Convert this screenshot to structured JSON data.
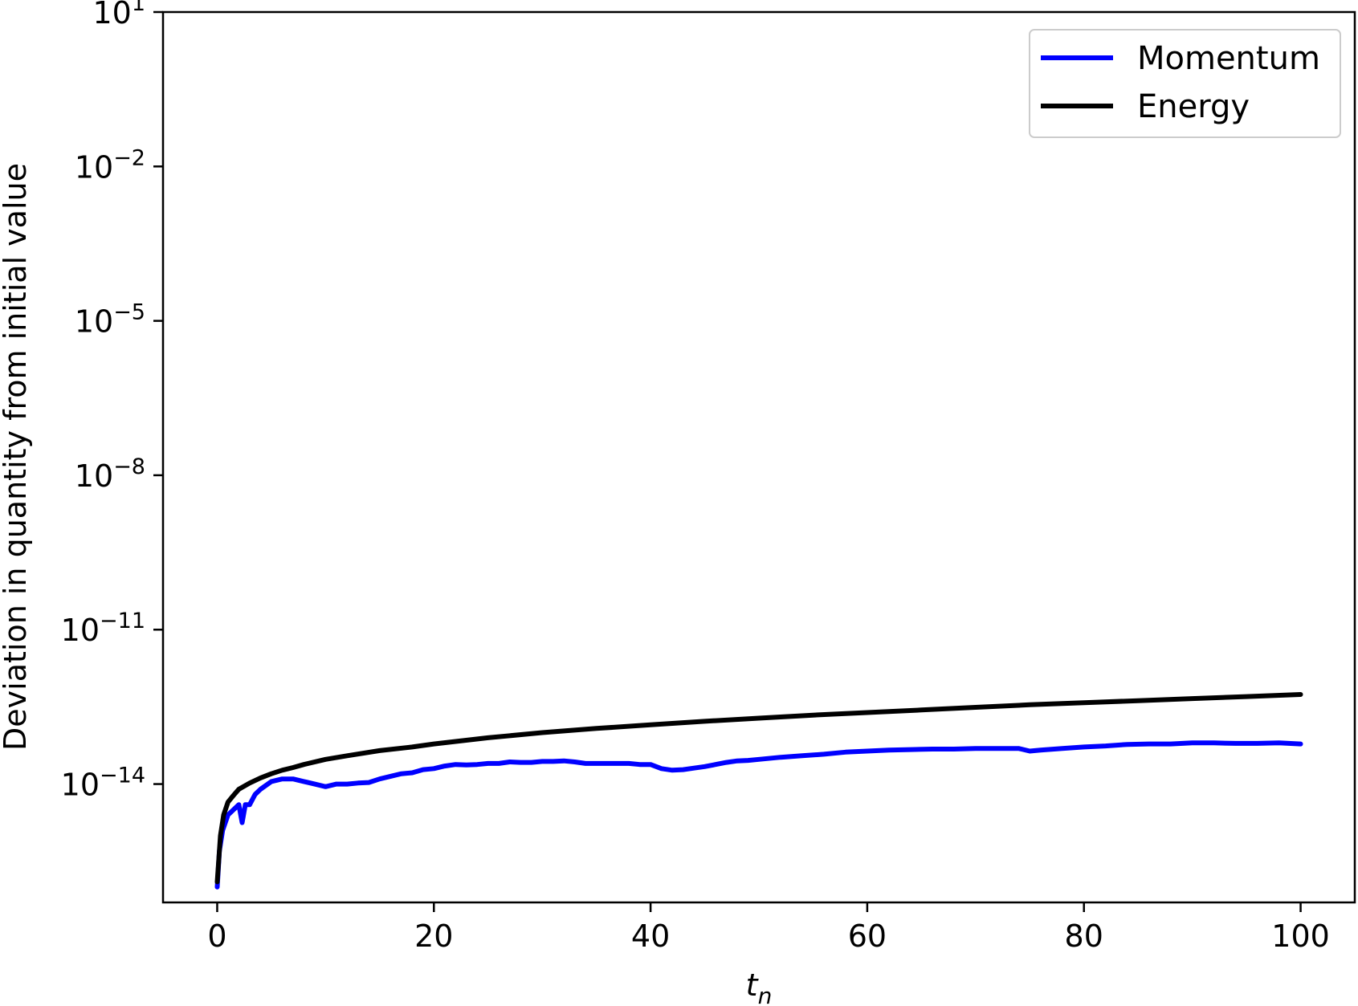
{
  "chart_data": {
    "type": "line",
    "title": "",
    "xlabel": "t_n",
    "xlabel_main": "t",
    "xlabel_sub": "n",
    "ylabel": "Deviation in quantity from initial value",
    "yscale": "log",
    "xlim": [
      -5,
      105
    ],
    "ylim_exponent": [
      -16.3,
      1
    ],
    "x_ticks": [
      0,
      20,
      40,
      60,
      80,
      100
    ],
    "x_tick_labels": [
      "0",
      "20",
      "40",
      "60",
      "80",
      "100"
    ],
    "y_ticks": [
      {
        "base": "10",
        "exp": "1",
        "value_exponent": 1
      },
      {
        "base": "10",
        "exp": "−2",
        "value_exponent": -2
      },
      {
        "base": "10",
        "exp": "−5",
        "value_exponent": -5
      },
      {
        "base": "10",
        "exp": "−8",
        "value_exponent": -8
      },
      {
        "base": "10",
        "exp": "−11",
        "value_exponent": -11
      },
      {
        "base": "10",
        "exp": "−14",
        "value_exponent": -14
      }
    ],
    "grid": false,
    "legend_position": "top-right",
    "series": [
      {
        "name": "Momentum",
        "color": "#0000ff",
        "x": [
          0,
          0.2,
          0.5,
          1,
          1.5,
          2,
          2.3,
          2.6,
          3,
          3.5,
          4,
          5,
          6,
          7,
          8,
          9,
          10,
          11,
          12,
          13,
          14,
          15,
          16,
          17,
          18,
          19,
          20,
          21,
          22,
          23,
          24,
          25,
          26,
          27,
          28,
          29,
          30,
          31,
          32,
          33,
          34,
          35,
          36,
          37,
          38,
          39,
          40,
          41,
          42,
          43,
          44,
          45,
          46,
          47,
          48,
          49,
          50,
          52,
          54,
          56,
          58,
          60,
          62,
          64,
          66,
          68,
          70,
          72,
          74,
          75,
          76,
          78,
          80,
          82,
          84,
          86,
          88,
          90,
          92,
          94,
          96,
          98,
          100
        ],
        "y_exponent": [
          -16.0,
          -15.3,
          -14.9,
          -14.6,
          -14.5,
          -14.4,
          -14.75,
          -14.4,
          -14.4,
          -14.2,
          -14.1,
          -13.95,
          -13.9,
          -13.9,
          -13.95,
          -14.0,
          -14.05,
          -14.0,
          -14.0,
          -13.98,
          -13.97,
          -13.9,
          -13.85,
          -13.8,
          -13.78,
          -13.72,
          -13.7,
          -13.65,
          -13.62,
          -13.63,
          -13.62,
          -13.6,
          -13.6,
          -13.57,
          -13.58,
          -13.58,
          -13.56,
          -13.56,
          -13.55,
          -13.57,
          -13.6,
          -13.6,
          -13.6,
          -13.6,
          -13.6,
          -13.62,
          -13.62,
          -13.7,
          -13.73,
          -13.72,
          -13.69,
          -13.66,
          -13.62,
          -13.58,
          -13.55,
          -13.54,
          -13.52,
          -13.48,
          -13.45,
          -13.42,
          -13.38,
          -13.36,
          -13.34,
          -13.33,
          -13.32,
          -13.32,
          -13.31,
          -13.31,
          -13.31,
          -13.36,
          -13.34,
          -13.31,
          -13.28,
          -13.26,
          -13.23,
          -13.22,
          -13.22,
          -13.2,
          -13.2,
          -13.21,
          -13.21,
          -13.2,
          -13.22
        ]
      },
      {
        "name": "Energy",
        "color": "#000000",
        "x": [
          0,
          0.3,
          0.6,
          1,
          1.5,
          2,
          3,
          4,
          5,
          6,
          7,
          8,
          10,
          12,
          15,
          18,
          20,
          25,
          30,
          35,
          40,
          45,
          50,
          55,
          60,
          65,
          70,
          75,
          80,
          85,
          90,
          95,
          100
        ],
        "y_exponent": [
          -15.9,
          -15.0,
          -14.6,
          -14.35,
          -14.22,
          -14.1,
          -13.98,
          -13.88,
          -13.8,
          -13.73,
          -13.68,
          -13.62,
          -13.52,
          -13.45,
          -13.35,
          -13.28,
          -13.22,
          -13.1,
          -13.0,
          -12.92,
          -12.85,
          -12.78,
          -12.72,
          -12.66,
          -12.61,
          -12.56,
          -12.51,
          -12.46,
          -12.42,
          -12.38,
          -12.34,
          -12.3,
          -12.26
        ]
      }
    ]
  }
}
